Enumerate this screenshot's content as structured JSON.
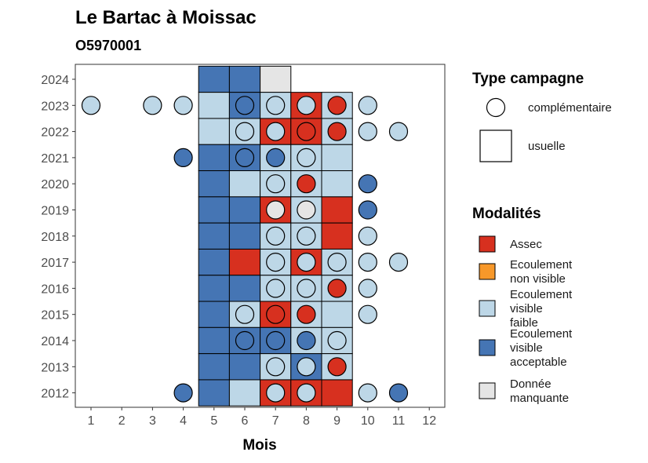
{
  "chart_data": {
    "type": "heatmap",
    "title": "Le Bartac à Moissac",
    "subtitle": "O5970001",
    "xlabel": "Mois",
    "ylabel": "",
    "x_ticks": [
      1,
      2,
      3,
      4,
      5,
      6,
      7,
      8,
      9,
      10,
      11,
      12
    ],
    "y_ticks": [
      2012,
      2013,
      2014,
      2015,
      2016,
      2017,
      2018,
      2019,
      2020,
      2021,
      2022,
      2023,
      2024
    ],
    "colors": {
      "Assec": "#d7301f",
      "Ecoulement non visible": "#f7982a",
      "Ecoulement visible faible": "#bdd7e7",
      "Ecoulement visible acceptable": "#4575b4",
      "Donnée manquante": "#e5e5e5"
    },
    "legend_type": {
      "title": "Type campagne",
      "items": [
        {
          "shape": "circle",
          "label": "complémentaire"
        },
        {
          "shape": "square",
          "label": "usuelle"
        }
      ]
    },
    "legend_modalites": {
      "title": "Modalités",
      "items": [
        {
          "key": "Assec",
          "lines": [
            "Assec"
          ]
        },
        {
          "key": "Ecoulement non visible",
          "lines": [
            "Ecoulement",
            "non visible"
          ]
        },
        {
          "key": "Ecoulement visible faible",
          "lines": [
            "Ecoulement",
            "visible",
            "faible"
          ]
        },
        {
          "key": "Ecoulement visible acceptable",
          "lines": [
            "Ecoulement",
            "visible",
            "acceptable"
          ]
        },
        {
          "key": "Donnée manquante",
          "lines": [
            "Donnée",
            "manquante"
          ]
        }
      ]
    },
    "usuelle": [
      {
        "year": 2024,
        "month": 5,
        "modalite": "Ecoulement visible acceptable"
      },
      {
        "year": 2024,
        "month": 6,
        "modalite": "Ecoulement visible acceptable"
      },
      {
        "year": 2024,
        "month": 7,
        "modalite": "Donnée manquante"
      },
      {
        "year": 2023,
        "month": 5,
        "modalite": "Ecoulement visible faible"
      },
      {
        "year": 2023,
        "month": 6,
        "modalite": "Ecoulement visible acceptable"
      },
      {
        "year": 2023,
        "month": 7,
        "modalite": "Ecoulement visible faible"
      },
      {
        "year": 2023,
        "month": 8,
        "modalite": "Assec"
      },
      {
        "year": 2023,
        "month": 9,
        "modalite": "Ecoulement visible faible"
      },
      {
        "year": 2022,
        "month": 5,
        "modalite": "Ecoulement visible faible"
      },
      {
        "year": 2022,
        "month": 6,
        "modalite": "Ecoulement visible faible"
      },
      {
        "year": 2022,
        "month": 7,
        "modalite": "Assec"
      },
      {
        "year": 2022,
        "month": 8,
        "modalite": "Assec"
      },
      {
        "year": 2022,
        "month": 9,
        "modalite": "Ecoulement visible faible"
      },
      {
        "year": 2021,
        "month": 5,
        "modalite": "Ecoulement visible acceptable"
      },
      {
        "year": 2021,
        "month": 6,
        "modalite": "Ecoulement visible acceptable"
      },
      {
        "year": 2021,
        "month": 7,
        "modalite": "Ecoulement visible faible"
      },
      {
        "year": 2021,
        "month": 8,
        "modalite": "Ecoulement visible faible"
      },
      {
        "year": 2021,
        "month": 9,
        "modalite": "Ecoulement visible faible"
      },
      {
        "year": 2020,
        "month": 5,
        "modalite": "Ecoulement visible acceptable"
      },
      {
        "year": 2020,
        "month": 6,
        "modalite": "Ecoulement visible faible"
      },
      {
        "year": 2020,
        "month": 7,
        "modalite": "Ecoulement visible faible"
      },
      {
        "year": 2020,
        "month": 8,
        "modalite": "Ecoulement visible faible"
      },
      {
        "year": 2020,
        "month": 9,
        "modalite": "Ecoulement visible faible"
      },
      {
        "year": 2019,
        "month": 5,
        "modalite": "Ecoulement visible acceptable"
      },
      {
        "year": 2019,
        "month": 6,
        "modalite": "Ecoulement visible acceptable"
      },
      {
        "year": 2019,
        "month": 7,
        "modalite": "Assec"
      },
      {
        "year": 2019,
        "month": 8,
        "modalite": "Ecoulement visible faible"
      },
      {
        "year": 2019,
        "month": 9,
        "modalite": "Assec"
      },
      {
        "year": 2018,
        "month": 5,
        "modalite": "Ecoulement visible acceptable"
      },
      {
        "year": 2018,
        "month": 6,
        "modalite": "Ecoulement visible acceptable"
      },
      {
        "year": 2018,
        "month": 7,
        "modalite": "Ecoulement visible faible"
      },
      {
        "year": 2018,
        "month": 8,
        "modalite": "Ecoulement visible faible"
      },
      {
        "year": 2018,
        "month": 9,
        "modalite": "Assec"
      },
      {
        "year": 2017,
        "month": 5,
        "modalite": "Ecoulement visible acceptable"
      },
      {
        "year": 2017,
        "month": 6,
        "modalite": "Assec"
      },
      {
        "year": 2017,
        "month": 7,
        "modalite": "Ecoulement visible faible"
      },
      {
        "year": 2017,
        "month": 8,
        "modalite": "Assec"
      },
      {
        "year": 2017,
        "month": 9,
        "modalite": "Ecoulement visible faible"
      },
      {
        "year": 2016,
        "month": 5,
        "modalite": "Ecoulement visible acceptable"
      },
      {
        "year": 2016,
        "month": 6,
        "modalite": "Ecoulement visible acceptable"
      },
      {
        "year": 2016,
        "month": 7,
        "modalite": "Ecoulement visible faible"
      },
      {
        "year": 2016,
        "month": 8,
        "modalite": "Ecoulement visible faible"
      },
      {
        "year": 2016,
        "month": 9,
        "modalite": "Ecoulement visible faible"
      },
      {
        "year": 2015,
        "month": 5,
        "modalite": "Ecoulement visible acceptable"
      },
      {
        "year": 2015,
        "month": 6,
        "modalite": "Ecoulement visible faible"
      },
      {
        "year": 2015,
        "month": 7,
        "modalite": "Assec"
      },
      {
        "year": 2015,
        "month": 8,
        "modalite": "Ecoulement visible faible"
      },
      {
        "year": 2015,
        "month": 9,
        "modalite": "Ecoulement visible faible"
      },
      {
        "year": 2014,
        "month": 5,
        "modalite": "Ecoulement visible acceptable"
      },
      {
        "year": 2014,
        "month": 6,
        "modalite": "Ecoulement visible acceptable"
      },
      {
        "year": 2014,
        "month": 7,
        "modalite": "Ecoulement visible acceptable"
      },
      {
        "year": 2014,
        "month": 8,
        "modalite": "Ecoulement visible faible"
      },
      {
        "year": 2014,
        "month": 9,
        "modalite": "Ecoulement visible faible"
      },
      {
        "year": 2013,
        "month": 5,
        "modalite": "Ecoulement visible acceptable"
      },
      {
        "year": 2013,
        "month": 6,
        "modalite": "Ecoulement visible acceptable"
      },
      {
        "year": 2013,
        "month": 7,
        "modalite": "Ecoulement visible faible"
      },
      {
        "year": 2013,
        "month": 8,
        "modalite": "Ecoulement visible acceptable"
      },
      {
        "year": 2013,
        "month": 9,
        "modalite": "Ecoulement visible faible"
      },
      {
        "year": 2012,
        "month": 5,
        "modalite": "Ecoulement visible acceptable"
      },
      {
        "year": 2012,
        "month": 6,
        "modalite": "Ecoulement visible faible"
      },
      {
        "year": 2012,
        "month": 7,
        "modalite": "Assec"
      },
      {
        "year": 2012,
        "month": 8,
        "modalite": "Assec"
      },
      {
        "year": 2012,
        "month": 9,
        "modalite": "Assec"
      }
    ],
    "complementaire": [
      {
        "year": 2023,
        "month": 1,
        "modalite": "Ecoulement visible faible"
      },
      {
        "year": 2023,
        "month": 3,
        "modalite": "Ecoulement visible faible"
      },
      {
        "year": 2023,
        "month": 4,
        "modalite": "Ecoulement visible faible"
      },
      {
        "year": 2023,
        "month": 6,
        "modalite": "Ecoulement visible acceptable"
      },
      {
        "year": 2023,
        "month": 7,
        "modalite": "Ecoulement visible faible"
      },
      {
        "year": 2023,
        "month": 8,
        "modalite": "Ecoulement visible faible"
      },
      {
        "year": 2023,
        "month": 9,
        "modalite": "Assec"
      },
      {
        "year": 2023,
        "month": 10,
        "modalite": "Ecoulement visible faible"
      },
      {
        "year": 2022,
        "month": 6,
        "modalite": "Ecoulement visible faible"
      },
      {
        "year": 2022,
        "month": 7,
        "modalite": "Ecoulement visible faible"
      },
      {
        "year": 2022,
        "month": 8,
        "modalite": "Assec"
      },
      {
        "year": 2022,
        "month": 9,
        "modalite": "Assec"
      },
      {
        "year": 2022,
        "month": 10,
        "modalite": "Ecoulement visible faible"
      },
      {
        "year": 2022,
        "month": 11,
        "modalite": "Ecoulement visible faible"
      },
      {
        "year": 2021,
        "month": 4,
        "modalite": "Ecoulement visible acceptable"
      },
      {
        "year": 2021,
        "month": 6,
        "modalite": "Ecoulement visible acceptable"
      },
      {
        "year": 2021,
        "month": 7,
        "modalite": "Ecoulement visible acceptable"
      },
      {
        "year": 2021,
        "month": 8,
        "modalite": "Ecoulement visible faible"
      },
      {
        "year": 2020,
        "month": 7,
        "modalite": "Ecoulement visible faible"
      },
      {
        "year": 2020,
        "month": 8,
        "modalite": "Assec"
      },
      {
        "year": 2020,
        "month": 10,
        "modalite": "Ecoulement visible acceptable"
      },
      {
        "year": 2019,
        "month": 7,
        "modalite": "Donnée manquante"
      },
      {
        "year": 2019,
        "month": 8,
        "modalite": "Donnée manquante"
      },
      {
        "year": 2019,
        "month": 10,
        "modalite": "Ecoulement visible acceptable"
      },
      {
        "year": 2018,
        "month": 7,
        "modalite": "Ecoulement visible faible"
      },
      {
        "year": 2018,
        "month": 8,
        "modalite": "Ecoulement visible faible"
      },
      {
        "year": 2018,
        "month": 10,
        "modalite": "Ecoulement visible faible"
      },
      {
        "year": 2017,
        "month": 7,
        "modalite": "Ecoulement visible faible"
      },
      {
        "year": 2017,
        "month": 8,
        "modalite": "Ecoulement visible faible"
      },
      {
        "year": 2017,
        "month": 9,
        "modalite": "Ecoulement visible faible"
      },
      {
        "year": 2017,
        "month": 10,
        "modalite": "Ecoulement visible faible"
      },
      {
        "year": 2017,
        "month": 11,
        "modalite": "Ecoulement visible faible"
      },
      {
        "year": 2016,
        "month": 7,
        "modalite": "Ecoulement visible faible"
      },
      {
        "year": 2016,
        "month": 8,
        "modalite": "Ecoulement visible faible"
      },
      {
        "year": 2016,
        "month": 9,
        "modalite": "Assec"
      },
      {
        "year": 2016,
        "month": 10,
        "modalite": "Ecoulement visible faible"
      },
      {
        "year": 2015,
        "month": 6,
        "modalite": "Ecoulement visible faible"
      },
      {
        "year": 2015,
        "month": 7,
        "modalite": "Assec"
      },
      {
        "year": 2015,
        "month": 8,
        "modalite": "Assec"
      },
      {
        "year": 2015,
        "month": 10,
        "modalite": "Ecoulement visible faible"
      },
      {
        "year": 2014,
        "month": 6,
        "modalite": "Ecoulement visible acceptable"
      },
      {
        "year": 2014,
        "month": 7,
        "modalite": "Ecoulement visible acceptable"
      },
      {
        "year": 2014,
        "month": 8,
        "modalite": "Ecoulement visible acceptable"
      },
      {
        "year": 2014,
        "month": 9,
        "modalite": "Ecoulement visible faible"
      },
      {
        "year": 2013,
        "month": 7,
        "modalite": "Ecoulement visible faible"
      },
      {
        "year": 2013,
        "month": 8,
        "modalite": "Ecoulement visible faible"
      },
      {
        "year": 2013,
        "month": 9,
        "modalite": "Assec"
      },
      {
        "year": 2012,
        "month": 4,
        "modalite": "Ecoulement visible acceptable"
      },
      {
        "year": 2012,
        "month": 7,
        "modalite": "Ecoulement visible faible"
      },
      {
        "year": 2012,
        "month": 8,
        "modalite": "Ecoulement visible faible"
      },
      {
        "year": 2012,
        "month": 10,
        "modalite": "Ecoulement visible faible"
      },
      {
        "year": 2012,
        "month": 11,
        "modalite": "Ecoulement visible acceptable"
      }
    ]
  }
}
